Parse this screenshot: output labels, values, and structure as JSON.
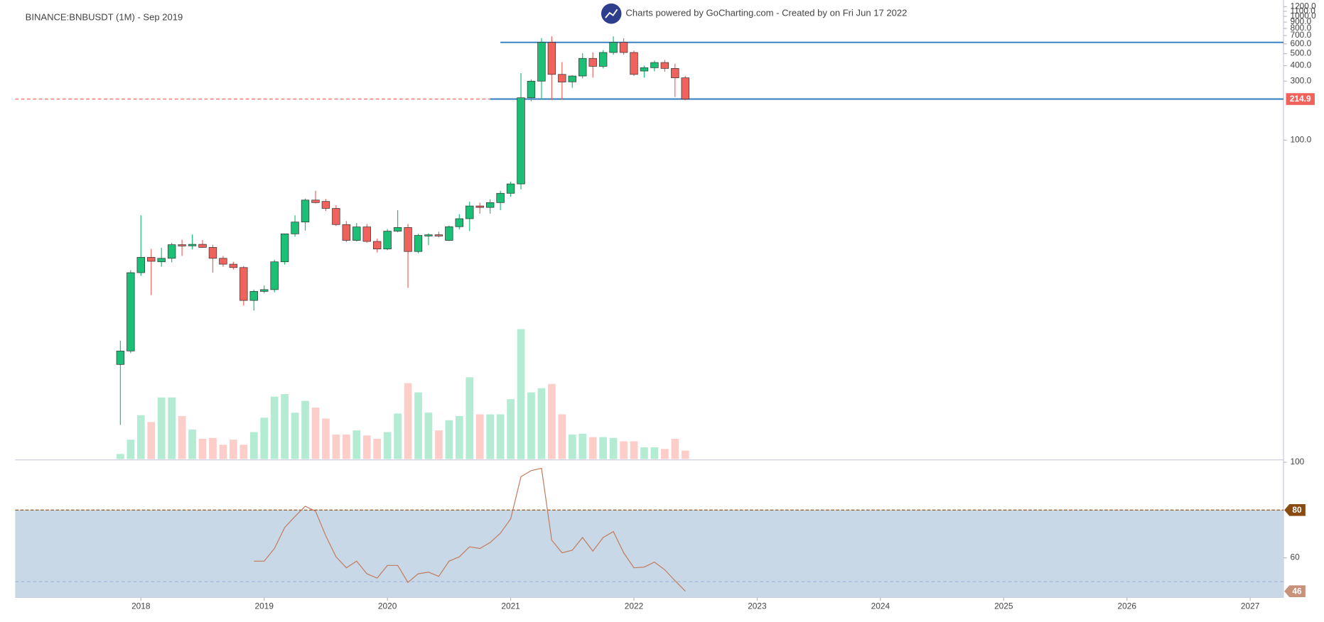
{
  "chart_data": {
    "type": "candlestick",
    "title": "BINANCE:BNBUSDT (1M) - Sep 2019",
    "subtitle": "Charts powered by GoCharting.com - Created by  on Fri Jun 17 2022",
    "x": [
      "2017-11",
      "2017-12",
      "2018-01",
      "2018-02",
      "2018-03",
      "2018-04",
      "2018-05",
      "2018-06",
      "2018-07",
      "2018-08",
      "2018-09",
      "2018-10",
      "2018-11",
      "2018-12",
      "2019-01",
      "2019-02",
      "2019-03",
      "2019-04",
      "2019-05",
      "2019-06",
      "2019-07",
      "2019-08",
      "2019-09",
      "2019-10",
      "2019-11",
      "2019-12",
      "2020-01",
      "2020-02",
      "2020-03",
      "2020-04",
      "2020-05",
      "2020-06",
      "2020-07",
      "2020-08",
      "2020-09",
      "2020-10",
      "2020-11",
      "2020-12",
      "2021-01",
      "2021-02",
      "2021-03",
      "2021-04",
      "2021-05",
      "2021-06",
      "2021-07",
      "2021-08",
      "2021-09",
      "2021-10",
      "2021-11",
      "2021-12",
      "2022-01",
      "2022-02",
      "2022-03",
      "2022-04",
      "2022-05",
      "2022-06"
    ],
    "open": [
      1.54,
      1.98,
      8.5,
      11.3,
      10.4,
      11.1,
      14.3,
      14.0,
      14.4,
      13.6,
      11.1,
      9.95,
      9.35,
      5.07,
      6.0,
      6.2,
      10.4,
      17.5,
      21.8,
      32.8,
      32.0,
      28.1,
      20.8,
      15.5,
      19.9,
      15.2,
      13.2,
      18.4,
      19.7,
      12.6,
      17.0,
      17.2,
      15.5,
      20.0,
      23.2,
      29.4,
      28.6,
      31.3,
      37.2,
      44.3,
      220,
      300,
      617,
      340,
      296,
      330,
      458,
      395,
      511,
      617,
      511,
      362,
      385,
      424,
      380,
      319
    ],
    "high": [
      2.4,
      8.9,
      24.7,
      13.2,
      13.5,
      14.8,
      15.7,
      17.3,
      15.6,
      14.3,
      11.6,
      10.4,
      9.6,
      6.2,
      6.7,
      10.8,
      17.6,
      24.7,
      33.8,
      39.0,
      33.5,
      29.8,
      22.2,
      21.4,
      21.0,
      16.0,
      19.2,
      27.2,
      21.0,
      17.5,
      17.7,
      18.2,
      20.4,
      25.2,
      31.8,
      31.3,
      33.3,
      39.0,
      46.3,
      348,
      310,
      668,
      690,
      428,
      335,
      505,
      512,
      533,
      690,
      665,
      530,
      400,
      440,
      445,
      415,
      330
    ],
    "low": [
      0.5,
      1.9,
      8.0,
      5.6,
      9.5,
      10.3,
      11.6,
      13.1,
      13.5,
      8.5,
      9.5,
      9.0,
      4.6,
      4.2,
      5.8,
      5.9,
      9.9,
      16.6,
      18.6,
      30.8,
      26.8,
      20.2,
      15.0,
      15.2,
      14.8,
      12.4,
      12.9,
      18.0,
      6.4,
      12.2,
      14.2,
      16.4,
      15.3,
      19.0,
      18.4,
      25.5,
      25.5,
      27.2,
      34.9,
      40,
      207,
      212,
      211,
      212,
      265,
      316,
      320,
      380,
      490,
      490,
      330,
      320,
      360,
      357,
      223,
      210
    ],
    "close": [
      1.98,
      8.5,
      11.3,
      10.5,
      11.1,
      14.3,
      14.0,
      14.4,
      13.6,
      11.1,
      9.95,
      9.35,
      5.07,
      6.0,
      6.2,
      10.4,
      17.5,
      21.8,
      32.8,
      31.3,
      28.1,
      20.8,
      15.5,
      19.9,
      15.2,
      13.2,
      18.4,
      19.7,
      12.6,
      17.0,
      17.2,
      16.8,
      20.0,
      23.2,
      29.4,
      28.6,
      31.3,
      37.2,
      44.3,
      220,
      300,
      617,
      340,
      295,
      330,
      458,
      395,
      511,
      617,
      511,
      340,
      385,
      424,
      380,
      319,
      214.9
    ],
    "volume": [
      6,
      23,
      52,
      44,
      73,
      73,
      51,
      35,
      24,
      25,
      17,
      23,
      17,
      32,
      49,
      74,
      77,
      55,
      69,
      61,
      48,
      29,
      29,
      34,
      28,
      24,
      32,
      54,
      90,
      79,
      55,
      34,
      46,
      51,
      97,
      53,
      53,
      53,
      71,
      154,
      79,
      84,
      89,
      53,
      29,
      30,
      26,
      26,
      25,
      21,
      21,
      14,
      14,
      12,
      24,
      10
    ],
    "up_color": "#1cbf76",
    "down_color": "#f0625c",
    "volume_up_color": "#b4ebd3",
    "volume_down_color": "#fdcdc9",
    "log_scale": true,
    "ylim": [
      0.265,
      1252
    ],
    "yticks": [
      {
        "value": 1200,
        "label": "1200.0"
      },
      {
        "value": 1100,
        "label": "1100.0"
      },
      {
        "value": 1000,
        "label": "1000.0"
      },
      {
        "value": 900,
        "label": "900.0"
      },
      {
        "value": 800,
        "label": "800.0"
      },
      {
        "value": 700,
        "label": "700.0"
      },
      {
        "value": 600,
        "label": "600.0"
      },
      {
        "value": 500,
        "label": "500.0"
      },
      {
        "value": 400,
        "label": "400.0"
      },
      {
        "value": 300,
        "label": "300.0"
      },
      {
        "value": 100,
        "label": "100.0"
      }
    ],
    "xlim": [
      2016.98,
      2027.27
    ],
    "xticks": [
      2018,
      2019,
      2020,
      2021,
      2022,
      2023,
      2024,
      2025,
      2026,
      2027
    ],
    "last_price": 214.9,
    "last_price_color": "#f0625c",
    "horizontal_lines": [
      {
        "value": 617,
        "start": "2020-12",
        "color": "#2f7bbf"
      },
      {
        "value": 214.9,
        "start": "2020-11",
        "color": "#2f7bbf"
      }
    ],
    "oscillator": {
      "values": [
        null,
        null,
        null,
        null,
        null,
        null,
        null,
        null,
        null,
        null,
        null,
        null,
        null,
        58.6,
        58.6,
        63.9,
        72.7,
        77.3,
        81.6,
        79.5,
        69.2,
        60.4,
        55.8,
        58.6,
        53.3,
        51.5,
        56.8,
        56.8,
        49.7,
        53.3,
        54.0,
        52.2,
        58.6,
        60.4,
        64.6,
        63.9,
        66.4,
        70.3,
        76.3,
        94.0,
        96.5,
        97.5,
        67.4,
        62.1,
        63.2,
        68.5,
        62.8,
        68.5,
        71.0,
        62.1,
        55.8,
        56.1,
        58.2,
        55.0,
        50.4,
        46
      ],
      "color": "#c27a5c",
      "ylim": [
        43.4,
        101
      ],
      "yticks": [
        100,
        60
      ],
      "upper_level": 80,
      "lower_level": 50,
      "band_color": "#c9d8e7",
      "upper_color": "#8a4b12",
      "last_color": "#c9907a"
    }
  }
}
